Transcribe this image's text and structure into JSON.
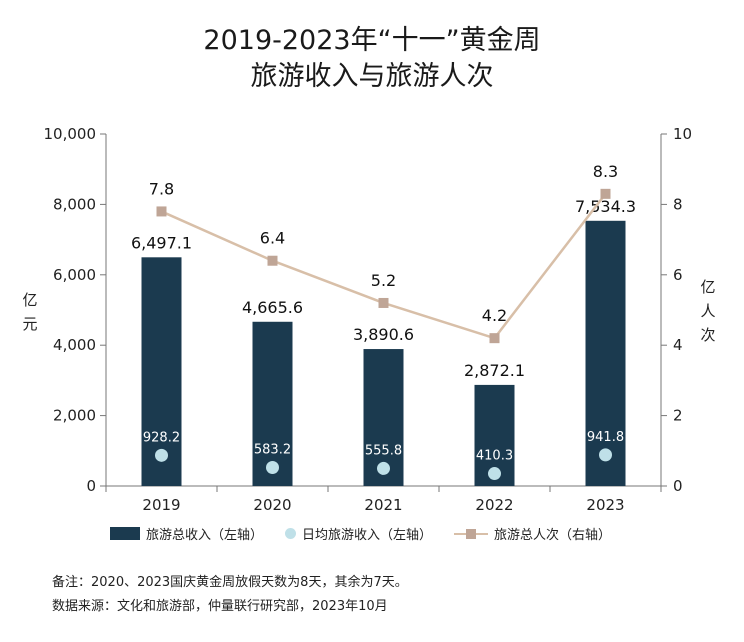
{
  "title_line1": "2019-2023年“十一”黄金周",
  "title_line2": "旅游收入与旅游人次",
  "chart_data": {
    "type": "bar",
    "title": "2019-2023年“十一”黄金周 旅游收入与旅游人次",
    "categories": [
      "2019",
      "2020",
      "2021",
      "2022",
      "2023"
    ],
    "series": [
      {
        "name": "旅游总收入（左轴）",
        "type": "bar",
        "axis": "left",
        "values": [
          6497.1,
          4665.6,
          3890.6,
          2872.1,
          7534.3
        ],
        "labels": [
          "6,497.1",
          "4,665.6",
          "3,890.6",
          "2,872.1",
          "7,534.3"
        ],
        "color": "#1b3a4f"
      },
      {
        "name": "日均旅游收入（左轴）",
        "type": "point",
        "axis": "left",
        "values": [
          928.2,
          583.2,
          555.8,
          410.3,
          941.8
        ],
        "labels": [
          "928.2",
          "583.2",
          "555.8",
          "410.3",
          "941.8"
        ],
        "color": "#bfe0e8"
      },
      {
        "name": "旅游总人次（右轴）",
        "type": "line",
        "axis": "right",
        "values": [
          7.8,
          6.4,
          5.2,
          4.2,
          8.3
        ],
        "labels": [
          "7.8",
          "6.4",
          "5.2",
          "4.2",
          "8.3"
        ],
        "color": "#d8bfa8",
        "marker_color": "#bfa596"
      }
    ],
    "left_axis": {
      "label": "亿元",
      "ylim": [
        0,
        10000
      ],
      "ticks": [
        0,
        2000,
        4000,
        6000,
        8000,
        10000
      ],
      "tick_labels": [
        "0",
        "2,000",
        "4,000",
        "6,000",
        "8,000",
        "10,000"
      ]
    },
    "right_axis": {
      "label": "亿人次",
      "ylim": [
        0,
        10
      ],
      "ticks": [
        0,
        2,
        4,
        6,
        8,
        10
      ],
      "tick_labels": [
        "0",
        "2",
        "4",
        "6",
        "8",
        "10"
      ]
    },
    "legend": [
      "旅游总收入（左轴）",
      "日均旅游收入（左轴）",
      "旅游总人次（右轴）"
    ],
    "grid": false
  },
  "legend": {
    "bar": "旅游总收入（左轴）",
    "dot": "日均旅游收入（左轴）",
    "line": "旅游总人次（右轴）"
  },
  "notes": {
    "line1": "备注：2020、2023国庆黄金周放假天数为8天，其余为7天。",
    "line2": "数据来源：文化和旅游部，仲量联行研究部，2023年10月"
  }
}
